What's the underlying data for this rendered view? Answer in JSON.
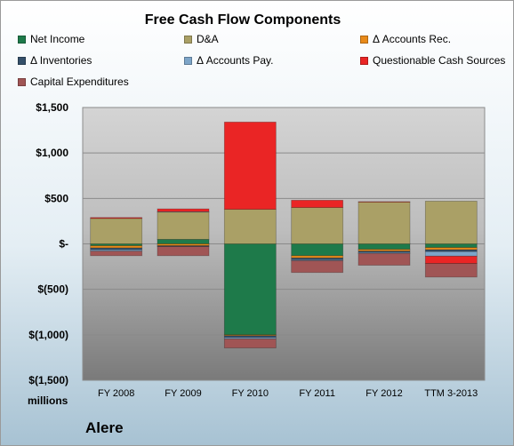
{
  "chart_data": {
    "type": "bar",
    "stacked": true,
    "title": "Free Cash Flow Components",
    "company": "Alere",
    "ylabel": "millions",
    "ylim": [
      -1500,
      1500
    ],
    "yticks": [
      {
        "value": 1500,
        "label": "$1,500"
      },
      {
        "value": 1000,
        "label": "$1,000"
      },
      {
        "value": 500,
        "label": "$500"
      },
      {
        "value": 0,
        "label": "$-"
      },
      {
        "value": -500,
        "label": "$(500)"
      },
      {
        "value": -1000,
        "label": "$(1,000)"
      },
      {
        "value": -1500,
        "label": "$(1,500)"
      }
    ],
    "grid": true,
    "legend_position": "top",
    "categories": [
      "FY 2008",
      "FY 2009",
      "FY 2010",
      "FY 2011",
      "FY 2012",
      "TTM 3-2013"
    ],
    "series": [
      {
        "name": "Net Income",
        "color": "#1e7a4a",
        "values": [
          -20,
          50,
          -1000,
          -130,
          -60,
          -40
        ]
      },
      {
        "name": "D&A",
        "color": "#aaa066",
        "values": [
          280,
          300,
          380,
          400,
          460,
          470
        ]
      },
      {
        "name": "Δ Accounts Rec.",
        "color": "#e88a1a",
        "values": [
          -25,
          -20,
          -10,
          -25,
          -20,
          -25
        ]
      },
      {
        "name": "Δ Inventories",
        "color": "#35506a",
        "values": [
          -20,
          -10,
          -20,
          -20,
          -15,
          -20
        ]
      },
      {
        "name": "Δ Accounts Pay.",
        "color": "#7da5c8",
        "values": [
          -15,
          5,
          -15,
          -10,
          -10,
          -50
        ]
      },
      {
        "name": "Questionable Cash Sources",
        "color": "#ea2525",
        "values": [
          10,
          30,
          960,
          80,
          5,
          -80
        ]
      },
      {
        "name": "Capital Expenditures",
        "color": "#a05555",
        "values": [
          -50,
          -100,
          -100,
          -130,
          -130,
          -150
        ]
      }
    ]
  }
}
